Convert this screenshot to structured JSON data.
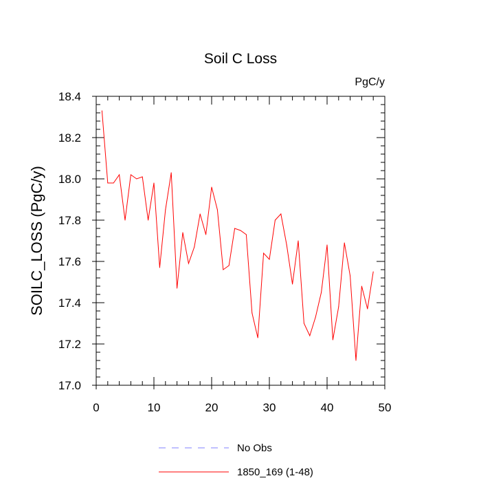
{
  "chart_data": {
    "type": "line",
    "title": "Soil C Loss",
    "units_label": "PgC/y",
    "ylabel": "SOILC_LOSS  (PgC/y)",
    "xlabel": "",
    "xlim": [
      0,
      50
    ],
    "ylim": [
      17.0,
      18.4
    ],
    "x_ticks": [
      0,
      10,
      20,
      30,
      40,
      50
    ],
    "y_ticks": [
      17.0,
      17.2,
      17.4,
      17.6,
      17.8,
      18.0,
      18.2,
      18.4
    ],
    "x_tick_labels": [
      "0",
      "10",
      "20",
      "30",
      "40",
      "50"
    ],
    "y_tick_labels": [
      "17.0",
      "17.2",
      "17.4",
      "17.6",
      "17.8",
      "18.0",
      "18.2",
      "18.4"
    ],
    "grid": false,
    "legend_position": "bottom",
    "series": [
      {
        "name": "1850_169 (1-48)",
        "color": "#ff0000",
        "line_style": "solid",
        "x": [
          1,
          2,
          3,
          4,
          5,
          6,
          7,
          8,
          9,
          10,
          11,
          12,
          13,
          14,
          15,
          16,
          17,
          18,
          19,
          20,
          21,
          22,
          23,
          24,
          25,
          26,
          27,
          28,
          29,
          30,
          31,
          32,
          33,
          34,
          35,
          36,
          37,
          38,
          39,
          40,
          41,
          42,
          43,
          44,
          45,
          46,
          47,
          48
        ],
        "values": [
          18.33,
          17.98,
          17.98,
          18.02,
          17.8,
          18.02,
          18.0,
          18.01,
          17.8,
          17.98,
          17.57,
          17.85,
          18.03,
          17.47,
          17.74,
          17.59,
          17.67,
          17.83,
          17.73,
          17.96,
          17.85,
          17.56,
          17.58,
          17.76,
          17.75,
          17.73,
          17.35,
          17.23,
          17.64,
          17.61,
          17.8,
          17.83,
          17.68,
          17.49,
          17.7,
          17.3,
          17.24,
          17.33,
          17.45,
          17.68,
          17.22,
          17.38,
          17.69,
          17.53,
          17.12,
          17.48,
          17.37,
          17.55
        ]
      },
      {
        "name": "No Obs",
        "color": "#8080ff",
        "line_style": "dashed",
        "x": [],
        "values": []
      }
    ]
  }
}
